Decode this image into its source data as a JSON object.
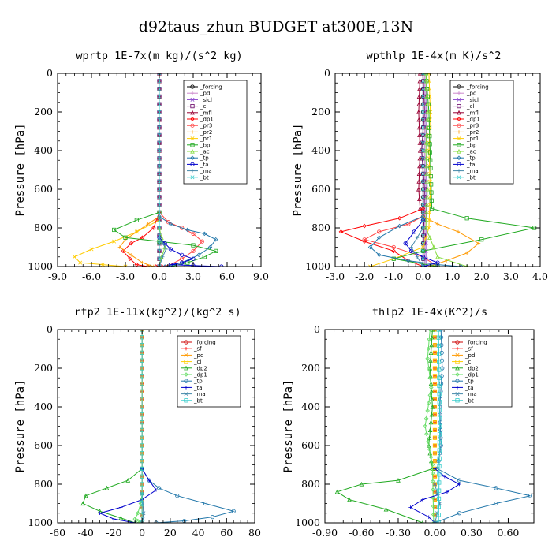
{
  "figure": {
    "title": "d92taus_zhun  BUDGET at300E,13N"
  },
  "chart_data": [
    {
      "type": "line",
      "title": "wprtp  1E-7x(m kg)/(s^2 kg)",
      "ylabel": "Pressure [hPa]",
      "xlim": [
        -9,
        9
      ],
      "ylim": [
        1000,
        0
      ],
      "xticks": [
        "-9.0",
        "-6.0",
        "-3.0",
        "0.0",
        "3.0",
        "6.0",
        "9.0"
      ],
      "xtick_values": [
        -9,
        -6,
        -3,
        0,
        3,
        6,
        9
      ],
      "yticks": [
        "0",
        "200",
        "400",
        "600",
        "800",
        "1000"
      ],
      "ytick_values": [
        0,
        200,
        400,
        600,
        800,
        1000
      ],
      "legend": [
        "_forcing",
        "_pd",
        "_sicl",
        "_cl",
        "_mfl",
        "_dp1",
        "_pr3",
        "_pr2",
        "_pr1",
        "_bp",
        "_ac",
        "_tp",
        "_ta",
        "_ma",
        "_bt"
      ],
      "series": [
        {
          "name": "_forcing",
          "color": "#000000",
          "x": [
            0,
            0
          ],
          "y": [
            0,
            1000
          ]
        },
        {
          "name": "_pd",
          "color": "#cc88cc",
          "x": [
            0,
            0
          ],
          "y": [
            0,
            1000
          ]
        },
        {
          "name": "_sicl",
          "color": "#8844cc",
          "x": [
            0,
            0
          ],
          "y": [
            0,
            1000
          ]
        },
        {
          "name": "_cl",
          "color": "#660066",
          "x": [
            0,
            0
          ],
          "y": [
            0,
            1000
          ]
        },
        {
          "name": "_mfl",
          "color": "#990033",
          "x": [
            0,
            0
          ],
          "y": [
            0,
            1000
          ]
        },
        {
          "name": "_dp1",
          "color": "#ff0000",
          "x": [
            0,
            -0.5,
            -1.5,
            -2.5,
            -3.2,
            -2.6,
            -2.0,
            -1.0,
            -0.3,
            0
          ],
          "y": [
            720,
            800,
            850,
            880,
            920,
            960,
            990,
            1000,
            1000,
            1000
          ]
        },
        {
          "name": "_pr3",
          "color": "#ff4444",
          "x": [
            0,
            0.8,
            2.0,
            3.0,
            3.8,
            3.0,
            2.0,
            1.0,
            0.2
          ],
          "y": [
            720,
            770,
            800,
            830,
            870,
            920,
            960,
            990,
            1000
          ]
        },
        {
          "name": "_pr2",
          "color": "#ff9900",
          "x": [
            0,
            -1.0,
            -2.0,
            -3.0,
            -3.5,
            -2.5,
            -1.5,
            -0.5
          ],
          "y": [
            740,
            780,
            820,
            860,
            900,
            940,
            980,
            1000
          ]
        },
        {
          "name": "_pr1",
          "color": "#ffcc00",
          "x": [
            0,
            -2.0,
            -4.0,
            -6.0,
            -7.5,
            -7.0,
            -5.0,
            -3.0,
            -1.0
          ],
          "y": [
            760,
            820,
            870,
            910,
            950,
            980,
            990,
            1000,
            1000
          ]
        },
        {
          "name": "_bp",
          "color": "#22aa22",
          "x": [
            0,
            -2.0,
            -4.0,
            -3.0,
            0,
            3.0,
            5.0,
            4.0,
            2.5,
            1.0
          ],
          "y": [
            720,
            760,
            810,
            850,
            870,
            890,
            920,
            950,
            980,
            1000
          ]
        },
        {
          "name": "_ac",
          "color": "#88dd44",
          "x": [
            0,
            0.2,
            0.5,
            0.2,
            0
          ],
          "y": [
            800,
            850,
            900,
            950,
            1000
          ]
        },
        {
          "name": "_tp",
          "color": "#2277aa",
          "x": [
            0,
            1.0,
            2.5,
            4.0,
            5.0,
            4.5,
            3.5,
            2.0,
            0.5
          ],
          "y": [
            740,
            780,
            810,
            830,
            860,
            900,
            940,
            980,
            1000
          ]
        },
        {
          "name": "_ta",
          "color": "#0000cc",
          "x": [
            0,
            0.5,
            1.0,
            2.0,
            3.0,
            2.0,
            1.0,
            3.0,
            5.5
          ],
          "y": [
            850,
            880,
            910,
            940,
            960,
            980,
            990,
            995,
            1000
          ]
        },
        {
          "name": "_ma",
          "color": "#4488aa",
          "x": [
            0,
            0.3,
            0.6,
            0.3,
            0
          ],
          "y": [
            850,
            880,
            910,
            950,
            1000
          ]
        },
        {
          "name": "_bt",
          "color": "#33cccc",
          "x": [
            0,
            0
          ],
          "y": [
            0,
            1000
          ]
        }
      ]
    },
    {
      "type": "line",
      "title": "wpthlp  1E-4x(m K)/s^2",
      "ylabel": "Pressure [hPa]",
      "xlim": [
        -3,
        4
      ],
      "ylim": [
        1000,
        0
      ],
      "xticks": [
        "-3.0",
        "-2.0",
        "-1.0",
        "0.0",
        "1.0",
        "2.0",
        "3.0",
        "4.0"
      ],
      "xtick_values": [
        -3,
        -2,
        -1,
        0,
        1,
        2,
        3,
        4
      ],
      "yticks": [
        "0",
        "200",
        "400",
        "600",
        "800",
        "1000"
      ],
      "ytick_values": [
        0,
        200,
        400,
        600,
        800,
        1000
      ],
      "legend": [
        "_forcing",
        "_pd",
        "_sicl",
        "_cl",
        "_mfl",
        "_dp1",
        "_pr3",
        "_pr2",
        "_pr1",
        "_bp",
        "_ac",
        "_tp",
        "_ta",
        "_ma",
        "_bt"
      ],
      "series": [
        {
          "name": "_forcing",
          "color": "#000000",
          "x": [
            0,
            0
          ],
          "y": [
            0,
            1000
          ]
        },
        {
          "name": "_pd",
          "color": "#cc88cc",
          "x": [
            0.05,
            0.05
          ],
          "y": [
            0,
            1000
          ]
        },
        {
          "name": "_sicl",
          "color": "#8844cc",
          "x": [
            0.1,
            0.1
          ],
          "y": [
            0,
            1000
          ]
        },
        {
          "name": "_cl",
          "color": "#660066",
          "x": [
            0,
            0.05,
            -0.05,
            0.05,
            0
          ],
          "y": [
            0,
            200,
            400,
            600,
            1000
          ]
        },
        {
          "name": "_mfl",
          "color": "#990033",
          "x": [
            -0.1,
            -0.15,
            -0.1,
            -0.15,
            -0.1
          ],
          "y": [
            0,
            200,
            400,
            600,
            700
          ]
        },
        {
          "name": "_dp1",
          "color": "#ff0000",
          "x": [
            0,
            -0.8,
            -2.0,
            -2.8,
            -2.0,
            -1.0,
            -0.5,
            0
          ],
          "y": [
            700,
            750,
            790,
            820,
            870,
            920,
            970,
            1000
          ]
        },
        {
          "name": "_pr3",
          "color": "#ff4444",
          "x": [
            0,
            -0.5,
            -1.5,
            -2.0,
            -1.0,
            0,
            0.5
          ],
          "y": [
            740,
            780,
            820,
            860,
            900,
            950,
            1000
          ]
        },
        {
          "name": "_pr2",
          "color": "#ff9900",
          "x": [
            0,
            0.5,
            1.2,
            1.9,
            1.5,
            0.8,
            0.2
          ],
          "y": [
            740,
            780,
            820,
            880,
            930,
            970,
            1000
          ]
        },
        {
          "name": "_pr1",
          "color": "#ffcc00",
          "x": [
            0.2,
            0.25,
            0.2,
            0.25,
            0.2,
            0,
            -1.0,
            -1.8
          ],
          "y": [
            0,
            200,
            400,
            600,
            800,
            900,
            960,
            1000
          ]
        },
        {
          "name": "_bp",
          "color": "#22aa22",
          "x": [
            0.1,
            0.2,
            0.3,
            1.5,
            3.8,
            2.0,
            0,
            -1.0,
            0.5
          ],
          "y": [
            0,
            200,
            700,
            750,
            800,
            860,
            920,
            960,
            1000
          ]
        },
        {
          "name": "_ac",
          "color": "#88dd44",
          "x": [
            0.1,
            0.15,
            0.1,
            0.15,
            0.1,
            0.5,
            1.5
          ],
          "y": [
            0,
            200,
            400,
            600,
            800,
            950,
            1000
          ]
        },
        {
          "name": "_tp",
          "color": "#2277aa",
          "x": [
            0,
            -0.8,
            -1.5,
            -1.8,
            -1.5,
            -0.5,
            0.5,
            1.3
          ],
          "y": [
            740,
            790,
            850,
            900,
            940,
            970,
            990,
            1000
          ]
        },
        {
          "name": "_ta",
          "color": "#0000cc",
          "x": [
            0,
            -0.3,
            -0.6,
            -0.4,
            0,
            0.5,
            0
          ],
          "y": [
            760,
            820,
            880,
            920,
            950,
            980,
            1000
          ]
        },
        {
          "name": "_ma",
          "color": "#4488aa",
          "x": [
            0,
            -0.2,
            -0.4,
            -0.2,
            0
          ],
          "y": [
            800,
            850,
            900,
            950,
            1000
          ]
        },
        {
          "name": "_bt",
          "color": "#33cccc",
          "x": [
            0,
            0
          ],
          "y": [
            0,
            1000
          ]
        }
      ]
    },
    {
      "type": "line",
      "title": "rtp2  1E-11x(kg^2)/(kg^2 s)",
      "ylabel": "Pressure [hPa]",
      "xlim": [
        -60,
        80
      ],
      "ylim": [
        1000,
        0
      ],
      "xticks": [
        "-60",
        "-40",
        "-20",
        "0",
        "20",
        "40",
        "60",
        "80"
      ],
      "xtick_values": [
        -60,
        -40,
        -20,
        0,
        20,
        40,
        60,
        80
      ],
      "yticks": [
        "0",
        "200",
        "400",
        "600",
        "800",
        "1000"
      ],
      "ytick_values": [
        0,
        200,
        400,
        600,
        800,
        1000
      ],
      "legend": [
        "_forcing",
        "_sf",
        "_pd",
        "_cl",
        "_dp2",
        "_dp1",
        "_tp",
        "_ta",
        "_ma",
        "_bt"
      ],
      "series": [
        {
          "name": "_forcing",
          "color": "#cc0000",
          "x": [
            0,
            0
          ],
          "y": [
            0,
            1000
          ]
        },
        {
          "name": "_sf",
          "color": "#ff0000",
          "x": [
            0,
            0
          ],
          "y": [
            0,
            1000
          ]
        },
        {
          "name": "_pd",
          "color": "#ff9900",
          "x": [
            0,
            0
          ],
          "y": [
            0,
            1000
          ]
        },
        {
          "name": "_cl",
          "color": "#ffcc00",
          "x": [
            0,
            0
          ],
          "y": [
            0,
            1000
          ]
        },
        {
          "name": "_dp2",
          "color": "#22aa22",
          "x": [
            0,
            -10,
            -25,
            -40,
            -42,
            -30,
            -15,
            -5
          ],
          "y": [
            720,
            780,
            820,
            860,
            900,
            940,
            975,
            1000
          ]
        },
        {
          "name": "_dp1",
          "color": "#66dd66",
          "x": [
            0,
            -1,
            -3,
            -5,
            -3,
            -1
          ],
          "y": [
            850,
            900,
            950,
            980,
            990,
            1000
          ]
        },
        {
          "name": "_tp",
          "color": "#2277aa",
          "x": [
            0,
            5,
            12,
            25,
            45,
            65,
            50,
            30,
            10
          ],
          "y": [
            720,
            780,
            820,
            860,
            900,
            940,
            970,
            990,
            1000
          ]
        },
        {
          "name": "_ta",
          "color": "#0000cc",
          "x": [
            0,
            5,
            10,
            0,
            -15,
            -30,
            -20,
            -5
          ],
          "y": [
            720,
            780,
            830,
            880,
            920,
            950,
            980,
            1000
          ]
        },
        {
          "name": "_ma",
          "color": "#4488aa",
          "x": [
            0,
            0.5,
            1,
            0.5,
            0
          ],
          "y": [
            850,
            900,
            950,
            980,
            1000
          ]
        },
        {
          "name": "_bt",
          "color": "#33cccc",
          "x": [
            0,
            0
          ],
          "y": [
            0,
            1000
          ]
        }
      ]
    },
    {
      "type": "line",
      "title": "thlp2  1E-4x(K^2)/s",
      "ylabel": "Pressure [hPa]",
      "xlim": [
        -0.9,
        0.81
      ],
      "ylim": [
        1000,
        0
      ],
      "xticks": [
        "-0.90",
        "-0.60",
        "-0.30",
        "0.00",
        "0.30",
        "0.60"
      ],
      "xtick_values": [
        -0.9,
        -0.6,
        -0.3,
        0,
        0.3,
        0.6
      ],
      "yticks": [
        "0",
        "200",
        "400",
        "600",
        "800",
        "1000"
      ],
      "ytick_values": [
        0,
        200,
        400,
        600,
        800,
        1000
      ],
      "legend": [
        "_forcing",
        "_sf",
        "_pd",
        "_cl",
        "_dp2",
        "_dp1",
        "_tp",
        "_ta",
        "_ma",
        "_bt"
      ],
      "series": [
        {
          "name": "_forcing",
          "color": "#cc0000",
          "x": [
            0,
            0
          ],
          "y": [
            0,
            1000
          ]
        },
        {
          "name": "_sf",
          "color": "#ff0000",
          "x": [
            0,
            0
          ],
          "y": [
            0,
            1000
          ]
        },
        {
          "name": "_pd",
          "color": "#ff9900",
          "x": [
            0,
            0
          ],
          "y": [
            0,
            1000
          ]
        },
        {
          "name": "_cl",
          "color": "#ffcc00",
          "x": [
            0,
            0
          ],
          "y": [
            0,
            1000
          ]
        },
        {
          "name": "_dp2",
          "color": "#22aa22",
          "x": [
            -0.02,
            -0.04,
            -0.02,
            -0.05,
            -0.02,
            -0.3,
            -0.6,
            -0.8,
            -0.7,
            -0.4,
            -0.1
          ],
          "y": [
            0,
            200,
            400,
            600,
            720,
            780,
            800,
            840,
            880,
            930,
            1000
          ]
        },
        {
          "name": "_dp1",
          "color": "#66dd66",
          "x": [
            -0.04,
            -0.06,
            -0.03,
            -0.08,
            -0.02,
            -0.01
          ],
          "y": [
            0,
            150,
            300,
            500,
            700,
            1000
          ]
        },
        {
          "name": "_tp",
          "color": "#2277aa",
          "x": [
            0.05,
            0.06,
            0.04,
            0.05,
            0.02,
            0.2,
            0.5,
            0.78,
            0.5,
            0.2,
            0
          ],
          "y": [
            0,
            200,
            400,
            600,
            720,
            780,
            820,
            860,
            900,
            950,
            1000
          ]
        },
        {
          "name": "_ta",
          "color": "#0000cc",
          "x": [
            0,
            0.08,
            0.2,
            0.1,
            -0.1,
            -0.2,
            -0.05,
            0
          ],
          "y": [
            720,
            760,
            800,
            840,
            880,
            920,
            970,
            1000
          ]
        },
        {
          "name": "_ma",
          "color": "#4488aa",
          "x": [
            0,
            0.02,
            0.04,
            0.02,
            0
          ],
          "y": [
            800,
            850,
            900,
            950,
            1000
          ]
        },
        {
          "name": "_bt",
          "color": "#33cccc",
          "x": [
            0.03,
            0.04,
            0.03
          ],
          "y": [
            0,
            500,
            1000
          ]
        }
      ]
    }
  ]
}
